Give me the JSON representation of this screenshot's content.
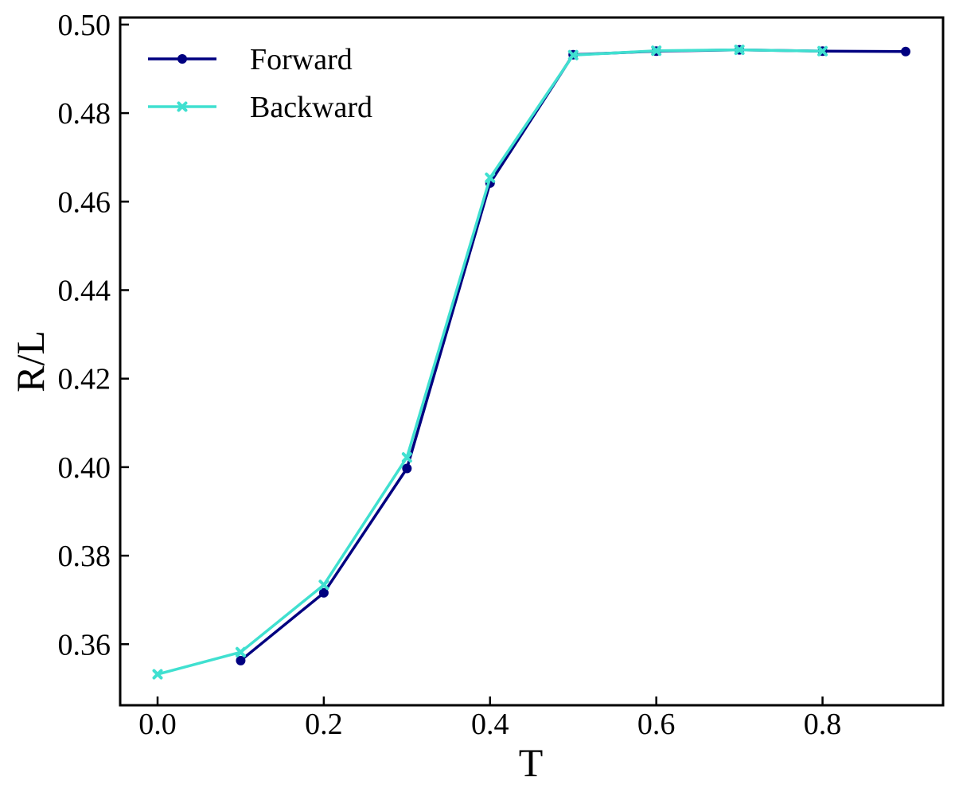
{
  "chart_data": {
    "type": "line",
    "title": "",
    "xlabel": "T",
    "ylabel": "R/L",
    "xlim": [
      -0.045,
      0.945
    ],
    "ylim": [
      0.3462,
      0.5016
    ],
    "xticks": [
      0.0,
      0.2,
      0.4,
      0.6,
      0.8
    ],
    "xtick_labels": [
      "0.0",
      "0.2",
      "0.4",
      "0.6",
      "0.8"
    ],
    "yticks": [
      0.36,
      0.38,
      0.4,
      0.42,
      0.44,
      0.46,
      0.48,
      0.5
    ],
    "ytick_labels": [
      "0.36",
      "0.38",
      "0.40",
      "0.42",
      "0.44",
      "0.46",
      "0.48",
      "0.50"
    ],
    "grid": false,
    "legend_position": "top-left",
    "series": [
      {
        "name": "Forward",
        "color": "#000080",
        "marker": "circle",
        "x": [
          0.1,
          0.2,
          0.3,
          0.4,
          0.5,
          0.6,
          0.7,
          0.8,
          0.9
        ],
        "y": [
          0.3563,
          0.3716,
          0.3997,
          0.4642,
          0.4932,
          0.494,
          0.4943,
          0.494,
          0.4939
        ]
      },
      {
        "name": "Backward",
        "color": "#40E0D0",
        "marker": "x",
        "x": [
          0.0,
          0.1,
          0.2,
          0.3,
          0.4,
          0.5,
          0.6,
          0.7,
          0.8
        ],
        "y": [
          0.3532,
          0.3582,
          0.3734,
          0.4022,
          0.4654,
          0.4931,
          0.4941,
          0.4943,
          0.494
        ]
      }
    ]
  }
}
